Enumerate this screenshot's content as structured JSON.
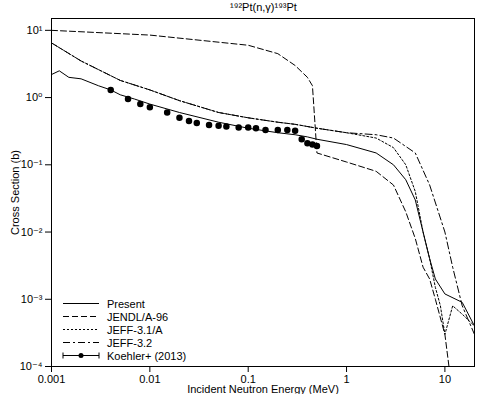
{
  "chart_data": {
    "type": "line",
    "title": "¹⁹²Pt(n,γ)¹⁹³Pt",
    "x_label": "Incident Neutron Energy (MeV)",
    "y_label": "Cross Section (b)",
    "log": true,
    "xlim": [
      0.001,
      20
    ],
    "ylim": [
      0.0001,
      15
    ],
    "xticks": [
      0.001,
      0.01,
      0.1,
      1,
      10
    ],
    "yticks": [
      {
        "value": 0.0001,
        "label": "10⁻⁴"
      },
      {
        "value": 0.001,
        "label": "10⁻³"
      },
      {
        "value": 0.01,
        "label": "10⁻²"
      },
      {
        "value": 0.1,
        "label": "10⁻¹"
      },
      {
        "value": 1,
        "label": "10⁰"
      },
      {
        "value": 10,
        "label": "10¹"
      }
    ],
    "legend": "bottom-left",
    "series": [
      {
        "name": "Present",
        "color": "#000000",
        "line_style": "solid",
        "x": [
          0.001,
          0.0012,
          0.0015,
          0.002,
          0.003,
          0.004,
          0.005,
          0.007,
          0.01,
          0.02,
          0.05,
          0.1,
          0.2,
          0.3,
          0.4,
          0.5,
          1,
          2,
          3,
          4,
          5,
          6,
          7,
          8,
          10,
          15,
          20
        ],
        "values": [
          2.2,
          2.5,
          2.0,
          1.9,
          1.5,
          1.3,
          1.1,
          0.95,
          0.8,
          0.6,
          0.43,
          0.35,
          0.3,
          0.28,
          0.26,
          0.24,
          0.2,
          0.15,
          0.1,
          0.06,
          0.03,
          0.01,
          0.004,
          0.002,
          0.0012,
          0.0009,
          0.0004
        ]
      },
      {
        "name": "JENDL/A-96",
        "color": "#000000",
        "line_style": "dashed",
        "x": [
          0.001,
          0.01,
          0.1,
          0.2,
          0.3,
          0.4,
          0.45,
          0.5,
          1,
          2,
          3,
          4,
          5,
          6,
          7,
          8,
          10,
          11
        ],
        "values": [
          10,
          8.5,
          6,
          4.5,
          3,
          2,
          1.5,
          0.15,
          0.11,
          0.08,
          0.05,
          0.02,
          0.008,
          0.003,
          0.002,
          0.001,
          0.0003,
          0.0001
        ]
      },
      {
        "name": "JEFF-3.1/A",
        "color": "#000000",
        "line_style": "dotted",
        "x": [
          0.001,
          0.002,
          0.005,
          0.01,
          0.02,
          0.05,
          0.1,
          0.2,
          0.3,
          0.5,
          1,
          2,
          3,
          4,
          5,
          6,
          7,
          8,
          9,
          10,
          12,
          15,
          20
        ],
        "values": [
          6.5,
          3.5,
          1.8,
          1.3,
          0.9,
          0.6,
          0.5,
          0.43,
          0.4,
          0.35,
          0.3,
          0.25,
          0.18,
          0.1,
          0.04,
          0.01,
          0.004,
          0.0015,
          0.0008,
          0.0003,
          0.0008,
          0.0006,
          0.0004
        ]
      },
      {
        "name": "JEFF-3.2",
        "color": "#000000",
        "line_style": "dashdot",
        "x": [
          0.001,
          0.002,
          0.005,
          0.01,
          0.02,
          0.05,
          0.1,
          0.2,
          0.3,
          0.5,
          1,
          2,
          3,
          5,
          7,
          10,
          12,
          15,
          20
        ],
        "values": [
          6.5,
          3.5,
          1.8,
          1.3,
          0.9,
          0.6,
          0.5,
          0.43,
          0.4,
          0.35,
          0.3,
          0.28,
          0.25,
          0.15,
          0.05,
          0.01,
          0.003,
          0.0008,
          0.0003
        ]
      },
      {
        "name": "Koehler+ (2013)",
        "color": "#000000",
        "type": "scatter",
        "marker": "circle",
        "x": [
          0.004,
          0.006,
          0.008,
          0.01,
          0.015,
          0.02,
          0.025,
          0.03,
          0.04,
          0.05,
          0.06,
          0.08,
          0.1,
          0.12,
          0.15,
          0.2,
          0.25,
          0.3,
          0.35,
          0.4,
          0.45,
          0.5
        ],
        "values": [
          1.3,
          0.95,
          0.8,
          0.72,
          0.6,
          0.5,
          0.45,
          0.42,
          0.39,
          0.38,
          0.37,
          0.36,
          0.36,
          0.35,
          0.33,
          0.33,
          0.33,
          0.32,
          0.24,
          0.21,
          0.2,
          0.19
        ],
        "errors": [
          0.07,
          0.05,
          0.04,
          0.04,
          0.03,
          0.03,
          0.02,
          0.02,
          0.02,
          0.02,
          0.02,
          0.02,
          0.02,
          0.02,
          0.02,
          0.02,
          0.02,
          0.02,
          0.01,
          0.01,
          0.01,
          0.01
        ]
      }
    ]
  }
}
